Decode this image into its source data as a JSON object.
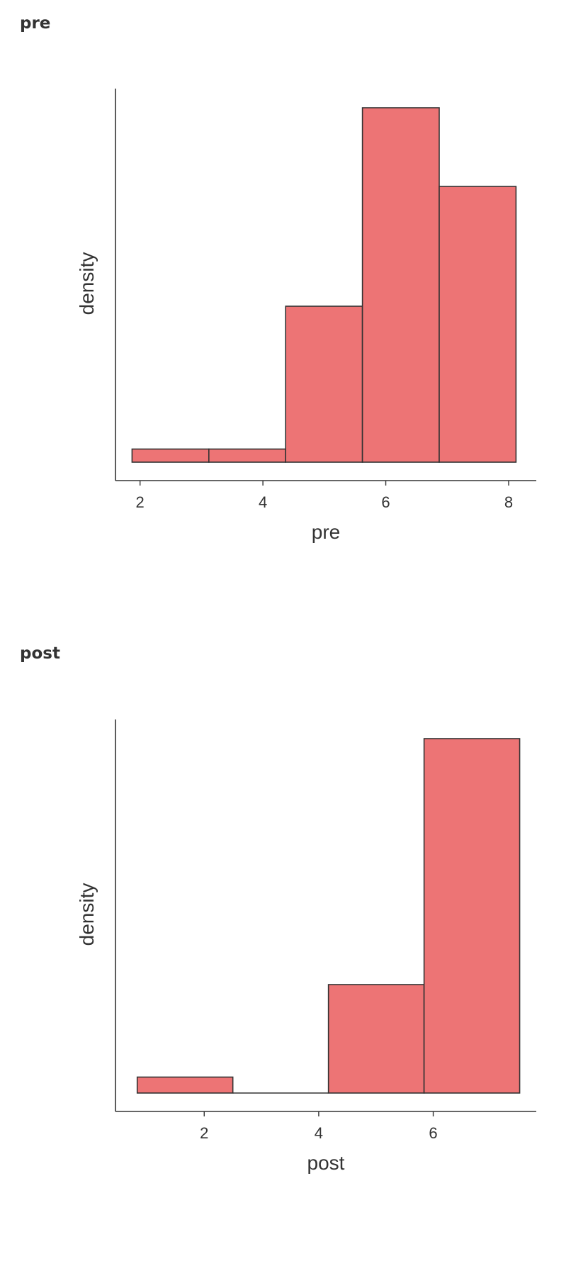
{
  "sections": [
    {
      "title": "pre"
    },
    {
      "title": "post"
    }
  ],
  "chart_data": [
    {
      "type": "bar",
      "title": "pre",
      "xlabel": "pre",
      "ylabel": "density",
      "xlim": [
        1.6,
        8.45
      ],
      "ylim": [
        0,
        1.05
      ],
      "xticks": [
        2,
        4,
        6,
        8
      ],
      "y_tick_labels_shown": false,
      "grid": false,
      "bins": [
        {
          "x0": 1.87,
          "x1": 3.12,
          "value": 0.037
        },
        {
          "x0": 3.12,
          "x1": 4.37,
          "value": 0.037
        },
        {
          "x0": 4.37,
          "x1": 5.62,
          "value": 0.44
        },
        {
          "x0": 5.62,
          "x1": 6.87,
          "value": 1.0
        },
        {
          "x0": 6.87,
          "x1": 8.12,
          "value": 0.778
        }
      ],
      "colors": {
        "fill": "#ED7475",
        "stroke": "#333333"
      }
    },
    {
      "type": "bar",
      "title": "post",
      "xlabel": "post",
      "ylabel": "density",
      "xlim": [
        0.45,
        7.8
      ],
      "ylim": [
        0,
        1.05
      ],
      "xticks": [
        2,
        4,
        6
      ],
      "y_tick_labels_shown": false,
      "grid": false,
      "bins": [
        {
          "x0": 0.83,
          "x1": 2.5,
          "value": 0.045
        },
        {
          "x0": 2.5,
          "x1": 4.17,
          "value": 0
        },
        {
          "x0": 4.17,
          "x1": 5.84,
          "value": 0.306
        },
        {
          "x0": 5.84,
          "x1": 7.51,
          "value": 1.0
        }
      ],
      "colors": {
        "fill": "#ED7475",
        "stroke": "#333333"
      }
    }
  ]
}
